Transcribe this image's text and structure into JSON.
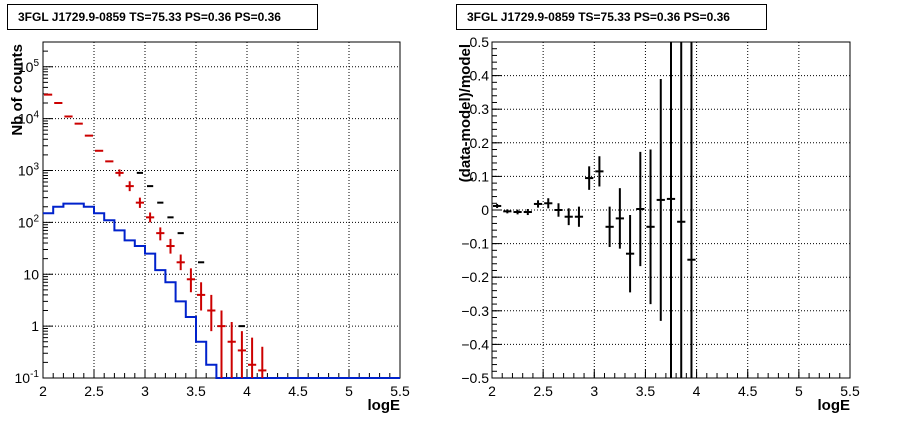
{
  "chart_data": [
    {
      "type": "histogram",
      "title": "3FGL J1729.9-0859 TS=75.33 PS=0.36 PS=0.36",
      "xlabel": "logE",
      "ylabel": "Nb of counts",
      "xlim": [
        2,
        5.5
      ],
      "ylim": [
        0.1,
        300000
      ],
      "yscale": "log",
      "grid": true,
      "x_ticks": [
        "2",
        "2.5",
        "3",
        "3.5",
        "4",
        "4.5",
        "5",
        "5.5"
      ],
      "y_ticks": [
        "10^-1",
        "1",
        "10",
        "10^2",
        "10^3",
        "10^4",
        "10^5"
      ],
      "bin_edges": [
        2.0,
        2.1,
        2.2,
        2.3,
        2.4,
        2.5,
        2.6,
        2.7,
        2.8,
        2.9,
        3.0,
        3.1,
        3.2,
        3.3,
        3.4,
        3.5,
        3.6,
        3.7,
        3.8,
        3.9,
        4.0,
        4.1,
        4.2,
        4.3,
        4.4,
        4.5
      ],
      "series": [
        {
          "color": "#0022cc",
          "style": "step",
          "values": [
            150,
            200,
            230,
            230,
            200,
            150,
            110,
            70,
            45,
            35,
            25,
            12,
            7,
            3,
            1.5,
            0.5,
            0.18,
            0.1,
            0.1,
            0.1,
            0.1,
            0.1,
            0.1,
            0.1,
            0.1
          ]
        },
        {
          "color": "#cc0000",
          "style": "markers",
          "values": [
            29000,
            20000,
            11000,
            8000,
            4700,
            2400,
            1500,
            900,
            500,
            240,
            125,
            62,
            35,
            17,
            8,
            4,
            2,
            1,
            0.5,
            0.34,
            0.18,
            0.14
          ],
          "err_low": [
            29000,
            20000,
            11000,
            8000,
            4700,
            2400,
            1500,
            770,
            400,
            190,
            100,
            45,
            25,
            12,
            4.5,
            2,
            0.8,
            0.1,
            0.1,
            0.1,
            0.1,
            0.1
          ],
          "err_high": [
            29000,
            20000,
            11000,
            8000,
            4700,
            2400,
            1500,
            1050,
            620,
            300,
            155,
            80,
            48,
            24,
            13,
            7,
            4,
            2,
            1.2,
            0.8,
            0.6,
            0.4
          ]
        },
        {
          "color": "#000000",
          "style": "markers",
          "values": [
            900,
            500,
            240,
            125,
            62,
            17,
            1
          ],
          "bins": [
            9,
            10,
            11,
            12,
            13,
            15,
            19
          ]
        }
      ]
    },
    {
      "type": "scatter",
      "title": "3FGL J1729.9-0859 TS=75.33 PS=0.36 PS=0.36",
      "xlabel": "logE",
      "ylabel": "(data-model)/model",
      "xlim": [
        2,
        5.5
      ],
      "ylim": [
        -0.5,
        0.5
      ],
      "grid": true,
      "x_ticks": [
        "2",
        "2.5",
        "3",
        "3.5",
        "4",
        "4.5",
        "5",
        "5.5"
      ],
      "y_ticks": [
        "-0.5",
        "-0.4",
        "-0.3",
        "-0.2",
        "-0.1",
        "0",
        "0.1",
        "0.2",
        "0.3",
        "0.4",
        "0.5"
      ],
      "points": [
        {
          "x": 2.05,
          "y": 0.012,
          "err": 0.006
        },
        {
          "x": 2.15,
          "y": -0.004,
          "err": 0.006
        },
        {
          "x": 2.25,
          "y": -0.006,
          "err": 0.007
        },
        {
          "x": 2.35,
          "y": -0.006,
          "err": 0.009
        },
        {
          "x": 2.45,
          "y": 0.018,
          "err": 0.011
        },
        {
          "x": 2.55,
          "y": 0.02,
          "err": 0.015
        },
        {
          "x": 2.65,
          "y": 0.0,
          "err": 0.02
        },
        {
          "x": 2.75,
          "y": -0.02,
          "err": 0.025
        },
        {
          "x": 2.85,
          "y": -0.02,
          "err": 0.03
        },
        {
          "x": 2.95,
          "y": 0.095,
          "err": 0.035
        },
        {
          "x": 3.05,
          "y": 0.115,
          "err": 0.045
        },
        {
          "x": 3.15,
          "y": -0.05,
          "err": 0.06
        },
        {
          "x": 3.25,
          "y": -0.025,
          "err": 0.09
        },
        {
          "x": 3.35,
          "y": -0.13,
          "err": 0.115
        },
        {
          "x": 3.45,
          "y": 0.003,
          "err": 0.17
        },
        {
          "x": 3.55,
          "y": -0.05,
          "err": 0.23
        },
        {
          "x": 3.65,
          "y": 0.03,
          "err": 0.36
        },
        {
          "x": 3.75,
          "y": 0.033,
          "err": 0.9
        },
        {
          "x": 3.85,
          "y": -0.035,
          "err": 0.9
        },
        {
          "x": 3.95,
          "y": -0.148,
          "err": 0.9
        }
      ]
    }
  ]
}
